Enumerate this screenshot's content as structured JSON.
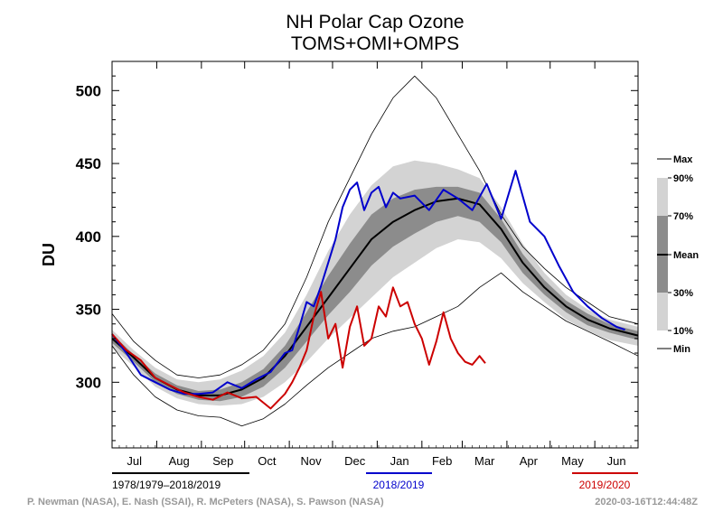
{
  "chart_data": {
    "type": "line",
    "title": "NH Polar Cap Ozone",
    "subtitle": "TOMS+OMI+OMPS",
    "ylabel": "DU",
    "ylim": [
      255,
      520
    ],
    "y_ticks": [
      300,
      350,
      400,
      450,
      500
    ],
    "months": [
      "Jul",
      "Aug",
      "Sep",
      "Oct",
      "Nov",
      "Dec",
      "Jan",
      "Feb",
      "Mar",
      "Apr",
      "May",
      "Jun"
    ],
    "x_unit": "day of season starting Jul 1",
    "xlim": [
      0,
      365
    ],
    "legend_bands": {
      "labels": [
        "Max",
        "90%",
        "70%",
        "Mean",
        "30%",
        "10%",
        "Min"
      ],
      "colors": {
        "light": "#d3d3d3",
        "mid": "#b3b3b3",
        "dark": "#8c8c8c",
        "mean": "#000000"
      }
    },
    "climatology": {
      "x": [
        0,
        15,
        30,
        45,
        60,
        75,
        90,
        105,
        120,
        135,
        150,
        165,
        180,
        195,
        210,
        225,
        240,
        255,
        270,
        285,
        300,
        315,
        330,
        345,
        365
      ],
      "mean": [
        330,
        317,
        303,
        295,
        291,
        291,
        295,
        303,
        318,
        338,
        358,
        378,
        398,
        410,
        418,
        424,
        426,
        422,
        405,
        382,
        365,
        352,
        343,
        337,
        332
      ],
      "max": [
        347,
        328,
        315,
        305,
        303,
        305,
        312,
        322,
        340,
        372,
        410,
        440,
        470,
        495,
        510,
        495,
        470,
        445,
        415,
        393,
        378,
        365,
        355,
        345,
        340
      ],
      "min": [
        325,
        305,
        290,
        281,
        277,
        276,
        270,
        275,
        285,
        298,
        310,
        320,
        330,
        335,
        338,
        345,
        352,
        365,
        375,
        362,
        352,
        342,
        335,
        328,
        318
      ],
      "p90": [
        336,
        322,
        310,
        302,
        300,
        302,
        308,
        318,
        334,
        360,
        390,
        415,
        435,
        448,
        452,
        450,
        446,
        440,
        420,
        395,
        375,
        360,
        350,
        343,
        338
      ],
      "p70": [
        333,
        319,
        306,
        298,
        294,
        295,
        300,
        309,
        325,
        348,
        373,
        395,
        415,
        426,
        432,
        434,
        434,
        430,
        412,
        388,
        370,
        356,
        347,
        340,
        335
      ],
      "p30": [
        327,
        314,
        300,
        292,
        288,
        287,
        290,
        297,
        310,
        328,
        346,
        362,
        380,
        393,
        402,
        410,
        414,
        410,
        396,
        375,
        360,
        348,
        339,
        334,
        329
      ],
      "p10": [
        324,
        311,
        297,
        289,
        285,
        284,
        285,
        290,
        300,
        314,
        330,
        344,
        358,
        372,
        382,
        392,
        398,
        396,
        385,
        368,
        355,
        343,
        335,
        329,
        325
      ]
    },
    "series": [
      {
        "name": "2018/2019",
        "color": "#0000cc",
        "x": [
          0,
          10,
          20,
          30,
          40,
          50,
          60,
          70,
          80,
          90,
          100,
          110,
          120,
          125,
          130,
          135,
          140,
          145,
          150,
          155,
          160,
          165,
          170,
          175,
          180,
          185,
          190,
          195,
          200,
          210,
          220,
          230,
          240,
          250,
          260,
          270,
          280,
          290,
          300,
          310,
          320,
          330,
          340,
          350,
          356
        ],
        "values": [
          333,
          320,
          305,
          300,
          295,
          292,
          292,
          293,
          300,
          296,
          302,
          307,
          320,
          322,
          338,
          355,
          352,
          366,
          382,
          398,
          420,
          432,
          437,
          418,
          430,
          434,
          420,
          430,
          426,
          428,
          418,
          432,
          426,
          418,
          436,
          412,
          445,
          410,
          400,
          380,
          362,
          352,
          344,
          338,
          336
        ]
      },
      {
        "name": "2019/2020",
        "color": "#cc0000",
        "x": [
          0,
          10,
          20,
          30,
          40,
          50,
          60,
          70,
          80,
          90,
          100,
          110,
          120,
          125,
          130,
          135,
          140,
          145,
          150,
          155,
          160,
          165,
          170,
          175,
          180,
          185,
          190,
          195,
          200,
          205,
          210,
          215,
          220,
          225,
          230,
          235,
          240,
          245,
          250,
          255,
          259
        ],
        "values": [
          333,
          322,
          315,
          303,
          298,
          293,
          290,
          288,
          293,
          289,
          290,
          282,
          292,
          300,
          310,
          322,
          345,
          362,
          330,
          340,
          310,
          338,
          352,
          325,
          330,
          352,
          345,
          365,
          352,
          355,
          340,
          330,
          312,
          328,
          348,
          330,
          320,
          314,
          312,
          318,
          313
        ]
      }
    ],
    "bottom_legend": [
      {
        "label": "1978/1979–2018/2019",
        "color": "#000000"
      },
      {
        "label": "2018/2019",
        "color": "#0000cc"
      },
      {
        "label": "2019/2020",
        "color": "#cc0000"
      }
    ],
    "credits": "P. Newman (NASA), E. Nash (SSAI), R. McPeters (NASA), S. Pawson (NASA)",
    "timestamp": "2020-03-16T12:44:48Z"
  }
}
